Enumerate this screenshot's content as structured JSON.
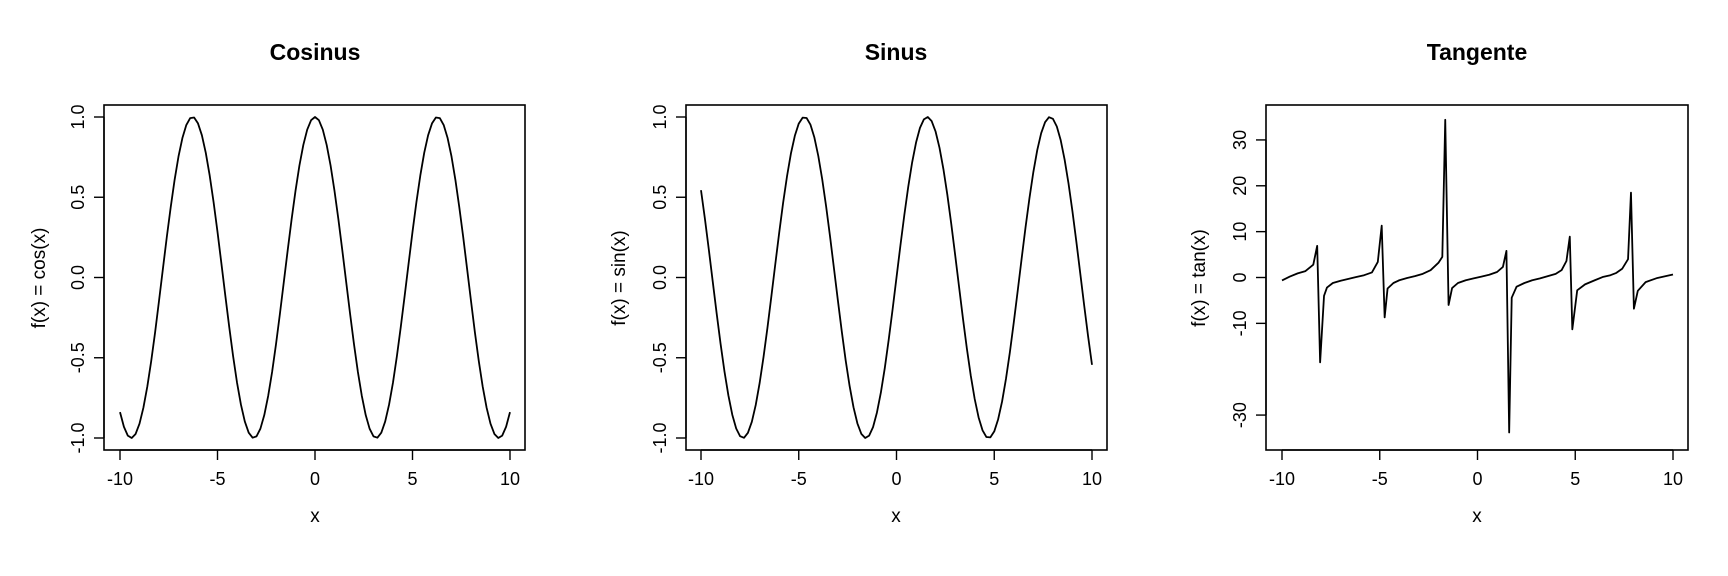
{
  "chart_data": [
    {
      "type": "line",
      "title": "Cosinus",
      "xlabel": "x",
      "ylabel": "f(x) = cos(x)",
      "xlim": [
        -10,
        10
      ],
      "ylim": [
        -1,
        1
      ],
      "x_ticks": [
        -10,
        -5,
        0,
        5,
        10
      ],
      "y_ticks": [
        -1.0,
        -0.5,
        0.0,
        0.5,
        1.0
      ],
      "x_tick_labels": [
        "-10",
        "-5",
        "0",
        "5",
        "10"
      ],
      "y_tick_labels": [
        "-1.0",
        "-0.5",
        "0.0",
        "0.5",
        "1.0"
      ],
      "grid": false,
      "series": [
        {
          "x": [
            -10,
            -9.8,
            -9.6,
            -9.4,
            -9.2,
            -9,
            -8.8,
            -8.6,
            -8.4,
            -8.2,
            -8,
            -7.8,
            -7.6,
            -7.4,
            -7.2,
            -7,
            -6.8,
            -6.6,
            -6.4,
            -6.2,
            -6,
            -5.8,
            -5.6,
            -5.4,
            -5.2,
            -5,
            -4.8,
            -4.6,
            -4.4,
            -4.2,
            -4,
            -3.8,
            -3.6,
            -3.4,
            -3.2,
            -3,
            -2.8,
            -2.6,
            -2.4,
            -2.2,
            -2,
            -1.8,
            -1.6,
            -1.4,
            -1.2,
            -1,
            -0.8,
            -0.6,
            -0.4,
            -0.2,
            0,
            0.2,
            0.4,
            0.6,
            0.8,
            1,
            1.2,
            1.4,
            1.6,
            1.8,
            2,
            2.2,
            2.4,
            2.6,
            2.8,
            3,
            3.2,
            3.4,
            3.6,
            3.8,
            4,
            4.2,
            4.4,
            4.6,
            4.8,
            5,
            5.2,
            5.4,
            5.6,
            5.8,
            6,
            6.2,
            6.4,
            6.6,
            6.8,
            7,
            7.2,
            7.4,
            7.6,
            7.8,
            8,
            8.2,
            8.4,
            8.6,
            8.8,
            9,
            9.2,
            9.4,
            9.6,
            9.8,
            10
          ],
          "y": [
            -0.839,
            -0.93,
            -0.985,
            -1.0,
            -0.975,
            -0.911,
            -0.811,
            -0.68,
            -0.521,
            -0.342,
            -0.146,
            0.054,
            0.252,
            0.438,
            0.608,
            0.754,
            0.869,
            0.95,
            0.993,
            0.997,
            0.96,
            0.886,
            0.776,
            0.635,
            0.469,
            0.284,
            0.087,
            -0.112,
            -0.307,
            -0.49,
            -0.654,
            -0.791,
            -0.897,
            -0.967,
            -0.998,
            -0.99,
            -0.942,
            -0.857,
            -0.737,
            -0.589,
            -0.416,
            -0.227,
            -0.029,
            0.17,
            0.362,
            0.54,
            0.697,
            0.825,
            0.921,
            0.98,
            1.0,
            0.98,
            0.921,
            0.825,
            0.697,
            0.54,
            0.362,
            0.17,
            -0.029,
            -0.227,
            -0.416,
            -0.589,
            -0.737,
            -0.857,
            -0.942,
            -0.99,
            -0.998,
            -0.967,
            -0.897,
            -0.791,
            -0.654,
            -0.49,
            -0.307,
            -0.112,
            0.087,
            0.284,
            0.469,
            0.635,
            0.776,
            0.886,
            0.96,
            0.997,
            0.993,
            0.95,
            0.869,
            0.754,
            0.608,
            0.438,
            0.252,
            0.054,
            -0.146,
            -0.342,
            -0.521,
            -0.68,
            -0.811,
            -0.911,
            -0.975,
            -1.0,
            -0.985,
            -0.93,
            -0.839
          ]
        }
      ]
    },
    {
      "type": "line",
      "title": "Sinus",
      "xlabel": "x",
      "ylabel": "f(x) = sin(x)",
      "xlim": [
        -10,
        10
      ],
      "ylim": [
        -1,
        1
      ],
      "x_ticks": [
        -10,
        -5,
        0,
        5,
        10
      ],
      "y_ticks": [
        -1.0,
        -0.5,
        0.0,
        0.5,
        1.0
      ],
      "x_tick_labels": [
        "-10",
        "-5",
        "0",
        "5",
        "10"
      ],
      "y_tick_labels": [
        "-1.0",
        "-0.5",
        "0.0",
        "0.5",
        "1.0"
      ],
      "grid": false,
      "series": [
        {
          "x": [
            -10,
            -9.8,
            -9.6,
            -9.4,
            -9.2,
            -9,
            -8.8,
            -8.6,
            -8.4,
            -8.2,
            -8,
            -7.8,
            -7.6,
            -7.4,
            -7.2,
            -7,
            -6.8,
            -6.6,
            -6.4,
            -6.2,
            -6,
            -5.8,
            -5.6,
            -5.4,
            -5.2,
            -5,
            -4.8,
            -4.6,
            -4.4,
            -4.2,
            -4,
            -3.8,
            -3.6,
            -3.4,
            -3.2,
            -3,
            -2.8,
            -2.6,
            -2.4,
            -2.2,
            -2,
            -1.8,
            -1.6,
            -1.4,
            -1.2,
            -1,
            -0.8,
            -0.6,
            -0.4,
            -0.2,
            0,
            0.2,
            0.4,
            0.6,
            0.8,
            1,
            1.2,
            1.4,
            1.6,
            1.8,
            2,
            2.2,
            2.4,
            2.6,
            2.8,
            3,
            3.2,
            3.4,
            3.6,
            3.8,
            4,
            4.2,
            4.4,
            4.6,
            4.8,
            5,
            5.2,
            5.4,
            5.6,
            5.8,
            6,
            6.2,
            6.4,
            6.6,
            6.8,
            7,
            7.2,
            7.4,
            7.6,
            7.8,
            8,
            8.2,
            8.4,
            8.6,
            8.8,
            9,
            9.2,
            9.4,
            9.6,
            9.8,
            10
          ],
          "y": [
            0.544,
            0.366,
            0.174,
            -0.025,
            -0.223,
            -0.412,
            -0.585,
            -0.734,
            -0.855,
            -0.941,
            -0.989,
            -0.999,
            -0.968,
            -0.899,
            -0.794,
            -0.657,
            -0.494,
            -0.312,
            -0.117,
            0.083,
            0.279,
            0.465,
            0.631,
            0.773,
            0.883,
            0.959,
            0.996,
            0.994,
            0.952,
            0.872,
            0.757,
            0.612,
            0.443,
            0.256,
            0.058,
            -0.141,
            -0.335,
            -0.516,
            -0.675,
            -0.808,
            -0.909,
            -0.974,
            -1.0,
            -0.985,
            -0.932,
            -0.841,
            -0.717,
            -0.565,
            -0.389,
            -0.199,
            0.0,
            0.199,
            0.389,
            0.565,
            0.717,
            0.841,
            0.932,
            0.985,
            1.0,
            0.974,
            0.909,
            0.808,
            0.675,
            0.516,
            0.335,
            0.141,
            -0.058,
            -0.256,
            -0.443,
            -0.612,
            -0.757,
            -0.872,
            -0.952,
            -0.994,
            -0.996,
            -0.959,
            -0.883,
            -0.773,
            -0.631,
            -0.465,
            -0.279,
            -0.083,
            0.117,
            0.312,
            0.494,
            0.657,
            0.794,
            0.899,
            0.968,
            0.999,
            0.989,
            0.941,
            0.855,
            0.734,
            0.585,
            0.412,
            0.223,
            0.025,
            -0.174,
            -0.366,
            -0.544
          ]
        }
      ]
    },
    {
      "type": "line",
      "title": "Tangente",
      "xlabel": "x",
      "ylabel": "f(x) = tan(x)",
      "xlim": [
        -10,
        10
      ],
      "ylim": [
        -35,
        35
      ],
      "x_ticks": [
        -10,
        -5,
        0,
        5,
        10
      ],
      "y_ticks": [
        -30,
        -10,
        0,
        10,
        20,
        30
      ],
      "x_tick_labels": [
        "-10",
        "-5",
        "0",
        "5",
        "10"
      ],
      "y_tick_labels": [
        "-30",
        "-10",
        "0",
        "10",
        "20",
        "30"
      ],
      "grid": false,
      "series": [
        {
          "x": [
            -10,
            -9.6,
            -9.2,
            -8.8,
            -8.4,
            -8.2,
            -8.05,
            -7.85,
            -7.7,
            -7.4,
            -7.0,
            -6.6,
            -6.2,
            -5.8,
            -5.4,
            -5.1,
            -4.9,
            -4.75,
            -4.6,
            -4.3,
            -4.0,
            -3.6,
            -3.2,
            -2.8,
            -2.4,
            -2.0,
            -1.8,
            -1.65,
            -1.48,
            -1.3,
            -1.0,
            -0.6,
            -0.2,
            0.2,
            0.6,
            1.0,
            1.3,
            1.48,
            1.62,
            1.75,
            2.0,
            2.4,
            2.8,
            3.2,
            3.6,
            4.0,
            4.3,
            4.55,
            4.72,
            4.85,
            5.1,
            5.5,
            6.0,
            6.4,
            6.8,
            7.1,
            7.4,
            7.7,
            7.85,
            8.0,
            8.2,
            8.6,
            9.2,
            10.0
          ],
          "y": [
            -0.65,
            0.2,
            0.9,
            1.4,
            2.8,
            6.9,
            -18.5,
            -4.0,
            -2.2,
            -1.2,
            -0.7,
            -0.3,
            0.1,
            0.5,
            1.1,
            3.4,
            11.3,
            -8.7,
            -2.4,
            -1.2,
            -0.6,
            -0.1,
            0.3,
            0.8,
            1.6,
            3.2,
            4.5,
            34.4,
            -6.0,
            -2.3,
            -1.2,
            -0.6,
            -0.2,
            0.2,
            0.6,
            1.2,
            2.3,
            5.8,
            -33.8,
            -4.4,
            -2.0,
            -1.2,
            -0.6,
            -0.2,
            0.3,
            0.8,
            1.6,
            3.6,
            8.9,
            -11.3,
            -2.8,
            -1.5,
            -0.6,
            0.1,
            0.5,
            1.0,
            1.9,
            4.0,
            18.5,
            -6.8,
            -2.9,
            -1.0,
            -0.1,
            0.65
          ]
        }
      ]
    }
  ]
}
